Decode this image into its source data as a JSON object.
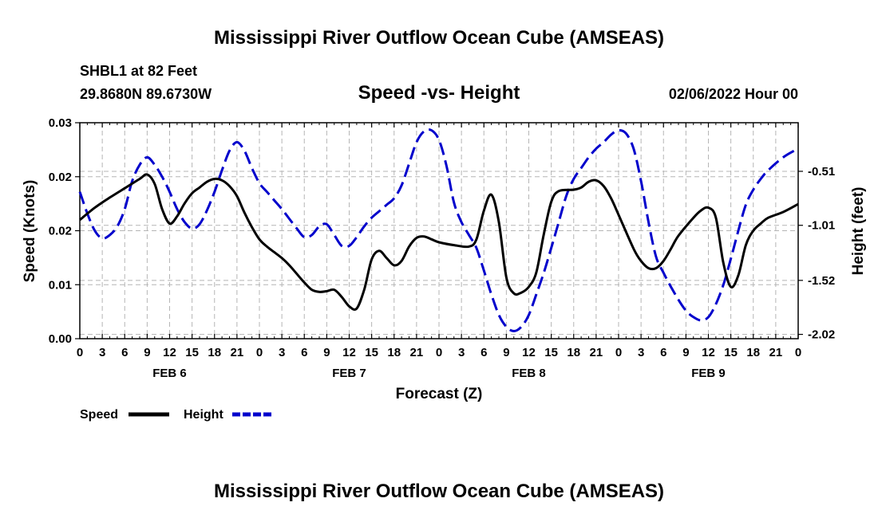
{
  "page": {
    "top_title": "Mississippi River Outflow Ocean Cube (AMSEAS)",
    "bottom_title": "Mississippi River Outflow Ocean Cube (AMSEAS)"
  },
  "colors": {
    "speed": "#000000",
    "height": "#0000cc",
    "grid": "#b5b5b5"
  },
  "chart_data": {
    "type": "line",
    "station": "SHBL1 at 82 Feet",
    "location": "29.8680N  89.6730W",
    "subtitle": "Speed -vs- Height",
    "datetime": "02/06/2022 Hour 00",
    "xlabel": "Forecast (Z)",
    "ylabel": "Speed (Knots)",
    "y2label": "Height (feet)",
    "x_range": [
      0,
      96
    ],
    "y_range": [
      0,
      0.03
    ],
    "y2_range": [
      -2.06,
      -0.06
    ],
    "x_tick_labels": [
      "0",
      "3",
      "6",
      "9",
      "12",
      "15",
      "18",
      "21",
      "0",
      "3",
      "6",
      "9",
      "12",
      "15",
      "18",
      "21",
      "0",
      "3",
      "6",
      "9",
      "12",
      "15",
      "18",
      "21",
      "0",
      "3",
      "6",
      "9",
      "12",
      "15",
      "18",
      "21",
      "0"
    ],
    "day_labels": [
      {
        "label": "FEB 6",
        "hour": 12
      },
      {
        "label": "FEB 7",
        "hour": 36
      },
      {
        "label": "FEB 8",
        "hour": 60
      },
      {
        "label": "FEB 9",
        "hour": 84
      }
    ],
    "y_ticks": [
      {
        "value": 0,
        "label": "0.00"
      },
      {
        "value": 0.0075,
        "label": "0.01"
      },
      {
        "value": 0.015,
        "label": "0.02"
      },
      {
        "value": 0.0225,
        "label": "0.02"
      },
      {
        "value": 0.03,
        "label": "0.03"
      }
    ],
    "y2_ticks": [
      {
        "value": -0.51,
        "label": "-0.51"
      },
      {
        "value": -1.01,
        "label": "-1.01"
      },
      {
        "value": -1.52,
        "label": "-1.52"
      },
      {
        "value": -2.02,
        "label": "-2.02"
      }
    ],
    "legend": [
      {
        "name": "Speed",
        "style": "solid"
      },
      {
        "name": "Height",
        "style": "dashed"
      }
    ],
    "series": [
      {
        "name": "Speed",
        "axis": "left",
        "points": [
          [
            0,
            0.0165
          ],
          [
            2,
            0.0182
          ],
          [
            4,
            0.0196
          ],
          [
            6,
            0.0209
          ],
          [
            8,
            0.0222
          ],
          [
            9,
            0.0228
          ],
          [
            10,
            0.0215
          ],
          [
            11,
            0.018
          ],
          [
            12,
            0.016
          ],
          [
            13,
            0.017
          ],
          [
            14,
            0.0188
          ],
          [
            15,
            0.0202
          ],
          [
            16,
            0.021
          ],
          [
            17,
            0.0218
          ],
          [
            18,
            0.0222
          ],
          [
            19,
            0.022
          ],
          [
            20,
            0.0212
          ],
          [
            21,
            0.0198
          ],
          [
            22,
            0.0175
          ],
          [
            23,
            0.0155
          ],
          [
            24,
            0.0138
          ],
          [
            25,
            0.0128
          ],
          [
            26,
            0.012
          ],
          [
            27,
            0.0112
          ],
          [
            28,
            0.0102
          ],
          [
            29,
            0.009
          ],
          [
            30,
            0.0078
          ],
          [
            31,
            0.0068
          ],
          [
            32,
            0.0065
          ],
          [
            33,
            0.0066
          ],
          [
            34,
            0.0068
          ],
          [
            35,
            0.0058
          ],
          [
            36,
            0.0045
          ],
          [
            37,
            0.0042
          ],
          [
            38,
            0.0068
          ],
          [
            39,
            0.011
          ],
          [
            40,
            0.0122
          ],
          [
            41,
            0.0112
          ],
          [
            42,
            0.0102
          ],
          [
            43,
            0.0108
          ],
          [
            44,
            0.0128
          ],
          [
            45,
            0.014
          ],
          [
            46,
            0.0142
          ],
          [
            47,
            0.0138
          ],
          [
            48,
            0.0134
          ],
          [
            50,
            0.013
          ],
          [
            52,
            0.0128
          ],
          [
            53,
            0.0138
          ],
          [
            54,
            0.0178
          ],
          [
            55,
            0.02
          ],
          [
            56,
            0.0162
          ],
          [
            57,
            0.0085
          ],
          [
            58,
            0.0063
          ],
          [
            59,
            0.0064
          ],
          [
            60,
            0.0072
          ],
          [
            61,
            0.0092
          ],
          [
            62,
            0.0145
          ],
          [
            63,
            0.019
          ],
          [
            64,
            0.0205
          ],
          [
            66,
            0.0207
          ],
          [
            67,
            0.021
          ],
          [
            68,
            0.0218
          ],
          [
            69,
            0.022
          ],
          [
            70,
            0.0212
          ],
          [
            71,
            0.0195
          ],
          [
            72,
            0.0172
          ],
          [
            74,
            0.0125
          ],
          [
            75,
            0.0108
          ],
          [
            76,
            0.0098
          ],
          [
            77,
            0.0098
          ],
          [
            78,
            0.0108
          ],
          [
            79,
            0.0125
          ],
          [
            80,
            0.0143
          ],
          [
            82,
            0.0168
          ],
          [
            83,
            0.0178
          ],
          [
            84,
            0.0182
          ],
          [
            85,
            0.0168
          ],
          [
            86,
            0.0105
          ],
          [
            87,
            0.0072
          ],
          [
            88,
            0.0088
          ],
          [
            89,
            0.013
          ],
          [
            90,
            0.015
          ],
          [
            91,
            0.016
          ],
          [
            92,
            0.0168
          ],
          [
            94,
            0.0176
          ],
          [
            96,
            0.0187
          ]
        ]
      },
      {
        "name": "Height",
        "axis": "right",
        "points": [
          [
            0,
            -0.7
          ],
          [
            1,
            -0.9
          ],
          [
            2,
            -1.06
          ],
          [
            3,
            -1.13
          ],
          [
            4,
            -1.1
          ],
          [
            5,
            -1.02
          ],
          [
            6,
            -0.86
          ],
          [
            7,
            -0.6
          ],
          [
            8,
            -0.45
          ],
          [
            9,
            -0.38
          ],
          [
            10,
            -0.45
          ],
          [
            11,
            -0.56
          ],
          [
            12,
            -0.7
          ],
          [
            13,
            -0.86
          ],
          [
            14,
            -0.98
          ],
          [
            15,
            -1.04
          ],
          [
            16,
            -1.0
          ],
          [
            17,
            -0.87
          ],
          [
            18,
            -0.7
          ],
          [
            19,
            -0.5
          ],
          [
            20,
            -0.32
          ],
          [
            21,
            -0.24
          ],
          [
            22,
            -0.32
          ],
          [
            23,
            -0.48
          ],
          [
            24,
            -0.62
          ],
          [
            25,
            -0.7
          ],
          [
            26,
            -0.78
          ],
          [
            27,
            -0.86
          ],
          [
            28,
            -0.95
          ],
          [
            29,
            -1.04
          ],
          [
            30,
            -1.12
          ],
          [
            31,
            -1.1
          ],
          [
            32,
            -1.02
          ],
          [
            33,
            -1.0
          ],
          [
            34,
            -1.1
          ],
          [
            35,
            -1.2
          ],
          [
            36,
            -1.2
          ],
          [
            37,
            -1.12
          ],
          [
            38,
            -1.02
          ],
          [
            39,
            -0.94
          ],
          [
            40,
            -0.88
          ],
          [
            41,
            -0.82
          ],
          [
            42,
            -0.76
          ],
          [
            43,
            -0.64
          ],
          [
            44,
            -0.44
          ],
          [
            45,
            -0.24
          ],
          [
            46,
            -0.14
          ],
          [
            47,
            -0.13
          ],
          [
            48,
            -0.22
          ],
          [
            49,
            -0.46
          ],
          [
            50,
            -0.8
          ],
          [
            51,
            -0.98
          ],
          [
            52,
            -1.1
          ],
          [
            53,
            -1.22
          ],
          [
            54,
            -1.43
          ],
          [
            55,
            -1.65
          ],
          [
            56,
            -1.84
          ],
          [
            57,
            -1.95
          ],
          [
            58,
            -1.99
          ],
          [
            59,
            -1.95
          ],
          [
            60,
            -1.84
          ],
          [
            61,
            -1.65
          ],
          [
            62,
            -1.45
          ],
          [
            63,
            -1.22
          ],
          [
            64,
            -0.98
          ],
          [
            65,
            -0.74
          ],
          [
            66,
            -0.58
          ],
          [
            67,
            -0.48
          ],
          [
            68,
            -0.38
          ],
          [
            69,
            -0.3
          ],
          [
            70,
            -0.24
          ],
          [
            71,
            -0.17
          ],
          [
            72,
            -0.13
          ],
          [
            73,
            -0.16
          ],
          [
            74,
            -0.3
          ],
          [
            75,
            -0.6
          ],
          [
            76,
            -0.98
          ],
          [
            77,
            -1.3
          ],
          [
            78,
            -1.45
          ],
          [
            79,
            -1.58
          ],
          [
            80,
            -1.7
          ],
          [
            81,
            -1.8
          ],
          [
            82,
            -1.86
          ],
          [
            83,
            -1.89
          ],
          [
            84,
            -1.86
          ],
          [
            85,
            -1.74
          ],
          [
            86,
            -1.56
          ],
          [
            87,
            -1.32
          ],
          [
            88,
            -1.06
          ],
          [
            89,
            -0.82
          ],
          [
            90,
            -0.68
          ],
          [
            91,
            -0.58
          ],
          [
            92,
            -0.5
          ],
          [
            94,
            -0.38
          ],
          [
            96,
            -0.3
          ]
        ]
      }
    ]
  }
}
